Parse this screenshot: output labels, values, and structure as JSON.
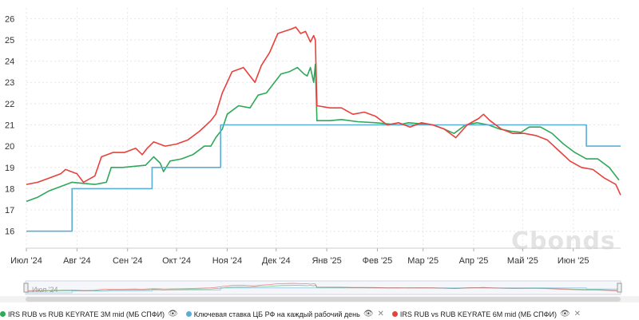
{
  "chart_data": {
    "type": "line",
    "title": "",
    "xlabel": "",
    "ylabel": "",
    "x_range": [
      "2024-07-01",
      "2025-06-30"
    ],
    "ylim": [
      15.2,
      26.5
    ],
    "y_ticks": [
      "16",
      "17",
      "18",
      "19",
      "20",
      "21",
      "22",
      "23",
      "24",
      "25",
      "26"
    ],
    "x_ticks": [
      {
        "date": "2024-07-01",
        "label": "Июл '24"
      },
      {
        "date": "2024-08-01",
        "label": "Авг '24"
      },
      {
        "date": "2024-09-01",
        "label": "Сен '24"
      },
      {
        "date": "2024-10-01",
        "label": "Окт '24"
      },
      {
        "date": "2024-11-01",
        "label": "Ноя '24"
      },
      {
        "date": "2024-12-01",
        "label": "Дек '24"
      },
      {
        "date": "2025-01-01",
        "label": "Янв '25"
      },
      {
        "date": "2025-02-01",
        "label": "Фев '25"
      },
      {
        "date": "2025-03-01",
        "label": "Мар '25"
      },
      {
        "date": "2025-04-01",
        "label": "Апр '25"
      },
      {
        "date": "2025-05-01",
        "label": "Май '25"
      },
      {
        "date": "2025-06-01",
        "label": "Июн '25"
      }
    ],
    "grid": true,
    "legend_position": "bottom",
    "series": [
      {
        "name": "IRS RUB vs RUB KEYRATE 3M mid (МБ СПФИ)",
        "color": "#2ea859",
        "step": false,
        "points": [
          [
            "2024-07-01",
            17.4
          ],
          [
            "2024-07-08",
            17.6
          ],
          [
            "2024-07-15",
            17.9
          ],
          [
            "2024-07-22",
            18.1
          ],
          [
            "2024-07-29",
            18.3
          ],
          [
            "2024-08-05",
            18.25
          ],
          [
            "2024-08-12",
            18.2
          ],
          [
            "2024-08-19",
            18.3
          ],
          [
            "2024-08-22",
            19.0
          ],
          [
            "2024-08-29",
            19.0
          ],
          [
            "2024-09-05",
            19.05
          ],
          [
            "2024-09-12",
            19.1
          ],
          [
            "2024-09-17",
            19.5
          ],
          [
            "2024-09-21",
            19.2
          ],
          [
            "2024-09-23",
            18.8
          ],
          [
            "2024-09-27",
            19.3
          ],
          [
            "2024-10-04",
            19.4
          ],
          [
            "2024-10-11",
            19.6
          ],
          [
            "2024-10-18",
            20.0
          ],
          [
            "2024-10-22",
            20.0
          ],
          [
            "2024-10-25",
            20.4
          ],
          [
            "2024-10-29",
            20.8
          ],
          [
            "2024-11-01",
            21.5
          ],
          [
            "2024-11-08",
            21.9
          ],
          [
            "2024-11-15",
            21.8
          ],
          [
            "2024-11-20",
            22.4
          ],
          [
            "2024-11-25",
            22.5
          ],
          [
            "2024-11-29",
            22.9
          ],
          [
            "2024-12-04",
            23.4
          ],
          [
            "2024-12-09",
            23.5
          ],
          [
            "2024-12-14",
            23.7
          ],
          [
            "2024-12-18",
            23.4
          ],
          [
            "2024-12-20",
            23.3
          ],
          [
            "2024-12-22",
            23.7
          ],
          [
            "2024-12-24",
            23.0
          ],
          [
            "2024-12-25",
            23.85
          ],
          [
            "2024-12-26",
            21.2
          ],
          [
            "2025-01-03",
            21.2
          ],
          [
            "2025-01-10",
            21.25
          ],
          [
            "2025-01-20",
            21.15
          ],
          [
            "2025-01-31",
            21.1
          ],
          [
            "2025-02-07",
            21.05
          ],
          [
            "2025-02-14",
            21.0
          ],
          [
            "2025-02-20",
            21.1
          ],
          [
            "2025-02-28",
            21.05
          ],
          [
            "2025-03-07",
            21.0
          ],
          [
            "2025-03-14",
            20.8
          ],
          [
            "2025-03-20",
            20.6
          ],
          [
            "2025-03-27",
            21.0
          ],
          [
            "2025-04-03",
            21.1
          ],
          [
            "2025-04-10",
            21.0
          ],
          [
            "2025-04-17",
            20.8
          ],
          [
            "2025-04-24",
            20.7
          ],
          [
            "2025-04-30",
            20.65
          ],
          [
            "2025-05-05",
            20.9
          ],
          [
            "2025-05-12",
            20.9
          ],
          [
            "2025-05-19",
            20.6
          ],
          [
            "2025-05-26",
            20.1
          ],
          [
            "2025-06-02",
            19.7
          ],
          [
            "2025-06-09",
            19.4
          ],
          [
            "2025-06-16",
            19.4
          ],
          [
            "2025-06-23",
            19.0
          ],
          [
            "2025-06-29",
            18.4
          ]
        ]
      },
      {
        "name": "Ключевая ставка ЦБ РФ на каждый рабочий день",
        "color": "#5aaed6",
        "step": true,
        "points": [
          [
            "2024-07-01",
            16.0
          ],
          [
            "2024-07-29",
            18.0
          ],
          [
            "2024-09-16",
            19.0
          ],
          [
            "2024-10-28",
            21.0
          ],
          [
            "2025-06-09",
            20.0
          ],
          [
            "2025-06-30",
            20.0
          ]
        ]
      },
      {
        "name": "IRS RUB vs RUB KEYRATE 6M mid (МБ СПФИ)",
        "color": "#e8413b",
        "step": false,
        "points": [
          [
            "2024-07-01",
            18.2
          ],
          [
            "2024-07-08",
            18.3
          ],
          [
            "2024-07-15",
            18.5
          ],
          [
            "2024-07-22",
            18.7
          ],
          [
            "2024-07-25",
            18.9
          ],
          [
            "2024-08-01",
            18.7
          ],
          [
            "2024-08-05",
            18.3
          ],
          [
            "2024-08-12",
            18.6
          ],
          [
            "2024-08-16",
            19.5
          ],
          [
            "2024-08-23",
            19.7
          ],
          [
            "2024-08-30",
            19.7
          ],
          [
            "2024-09-06",
            19.9
          ],
          [
            "2024-09-10",
            19.6
          ],
          [
            "2024-09-13",
            19.9
          ],
          [
            "2024-09-17",
            20.2
          ],
          [
            "2024-09-24",
            20.0
          ],
          [
            "2024-10-01",
            20.1
          ],
          [
            "2024-10-08",
            20.3
          ],
          [
            "2024-10-15",
            20.7
          ],
          [
            "2024-10-22",
            21.2
          ],
          [
            "2024-10-25",
            21.5
          ],
          [
            "2024-10-29",
            22.5
          ],
          [
            "2024-11-04",
            23.5
          ],
          [
            "2024-11-11",
            23.7
          ],
          [
            "2024-11-18",
            23.0
          ],
          [
            "2024-11-22",
            23.8
          ],
          [
            "2024-11-27",
            24.4
          ],
          [
            "2024-12-02",
            25.3
          ],
          [
            "2024-12-06",
            25.4
          ],
          [
            "2024-12-10",
            25.5
          ],
          [
            "2024-12-13",
            25.6
          ],
          [
            "2024-12-16",
            25.3
          ],
          [
            "2024-12-19",
            25.4
          ],
          [
            "2024-12-22",
            24.9
          ],
          [
            "2024-12-24",
            25.2
          ],
          [
            "2024-12-25",
            25.0
          ],
          [
            "2024-12-26",
            21.9
          ],
          [
            "2025-01-03",
            21.8
          ],
          [
            "2025-01-10",
            21.8
          ],
          [
            "2025-01-17",
            21.5
          ],
          [
            "2025-01-24",
            21.6
          ],
          [
            "2025-01-31",
            21.4
          ],
          [
            "2025-02-07",
            21.0
          ],
          [
            "2025-02-14",
            21.1
          ],
          [
            "2025-02-21",
            20.9
          ],
          [
            "2025-02-28",
            21.1
          ],
          [
            "2025-03-07",
            21.0
          ],
          [
            "2025-03-14",
            20.8
          ],
          [
            "2025-03-21",
            20.4
          ],
          [
            "2025-03-28",
            21.0
          ],
          [
            "2025-04-04",
            21.3
          ],
          [
            "2025-04-07",
            21.5
          ],
          [
            "2025-04-11",
            21.2
          ],
          [
            "2025-04-18",
            20.8
          ],
          [
            "2025-04-25",
            20.6
          ],
          [
            "2025-05-02",
            20.6
          ],
          [
            "2025-05-09",
            20.5
          ],
          [
            "2025-05-16",
            20.3
          ],
          [
            "2025-05-23",
            19.8
          ],
          [
            "2025-05-30",
            19.3
          ],
          [
            "2025-06-06",
            19.0
          ],
          [
            "2025-06-13",
            18.9
          ],
          [
            "2025-06-20",
            18.5
          ],
          [
            "2025-06-27",
            18.2
          ],
          [
            "2025-06-30",
            17.7
          ]
        ]
      }
    ]
  },
  "watermark": "Cbonds",
  "navigator": {
    "label": "Июл '24"
  },
  "legend": {
    "eye_glyph": "👁",
    "close_glyph": "✕",
    "items": [
      {
        "label": "IRS RUB vs RUB KEYRATE 3M mid (МБ СПФИ)",
        "color": "#2ea859",
        "icon": "eye-icon",
        "close": false
      },
      {
        "label": "Ключевая ставка ЦБ РФ на каждый рабочий день",
        "color": "#5aaed6",
        "icon": "eye-icon",
        "close": true
      },
      {
        "label": "IRS RUB vs RUB KEYRATE 6M mid (МБ СПФИ)",
        "color": "#e8413b",
        "icon": "eye-icon",
        "close": true
      }
    ]
  }
}
